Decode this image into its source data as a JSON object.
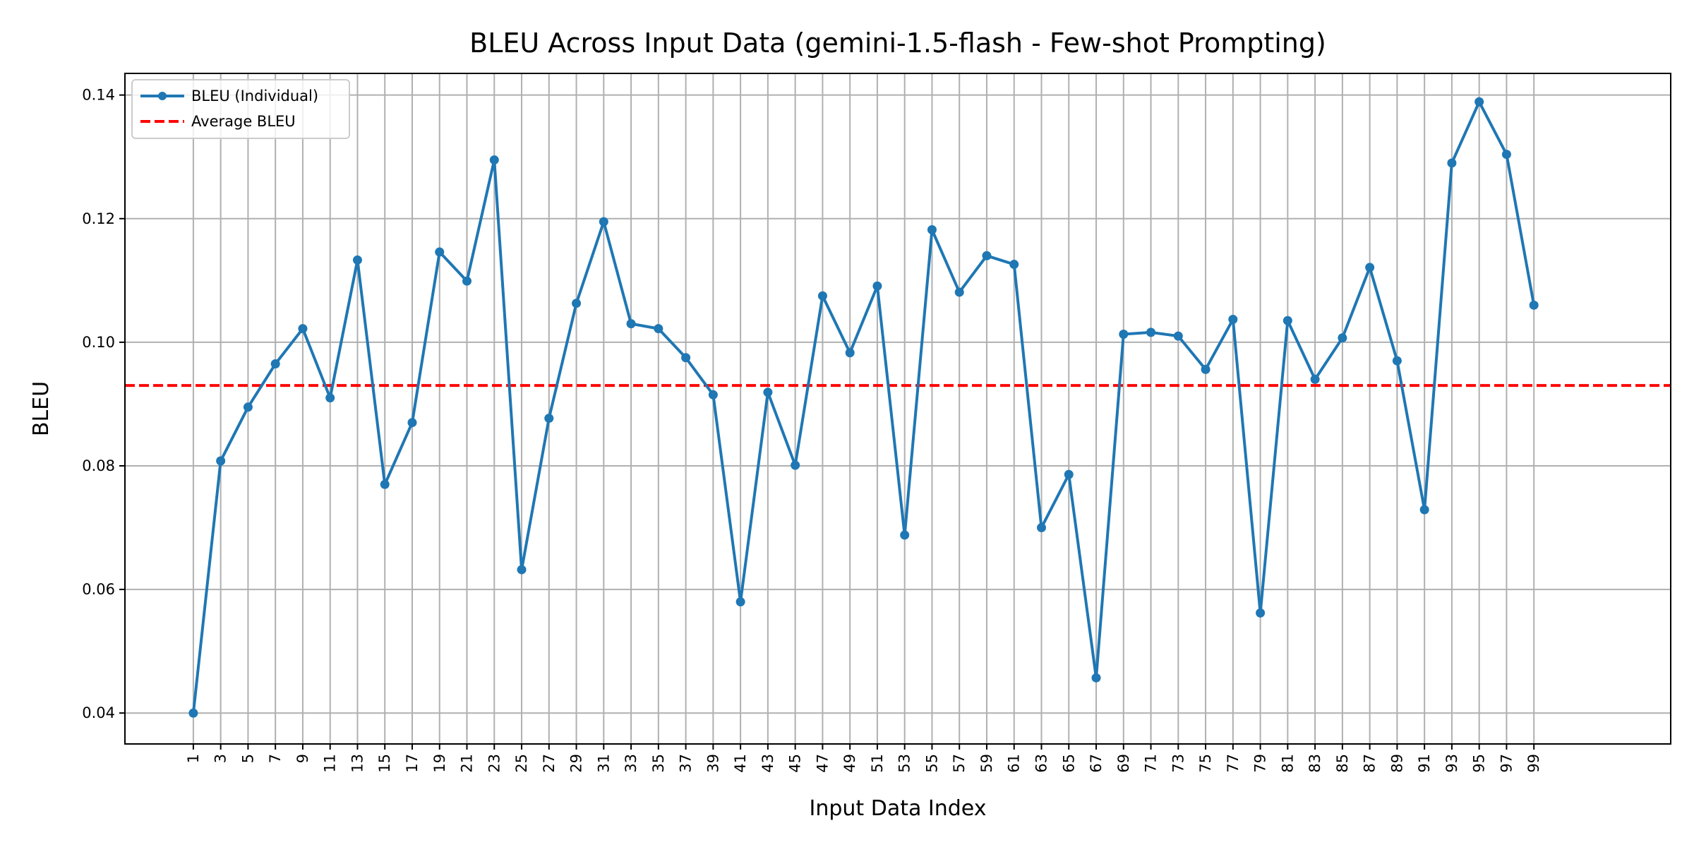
{
  "chart_data": {
    "type": "line",
    "title": "BLEU Across Input Data (gemini-1.5-flash - Few-shot Prompting)",
    "xlabel": "Input Data Index",
    "ylabel": "BLEU",
    "x": [
      1,
      3,
      5,
      7,
      9,
      11,
      13,
      15,
      17,
      19,
      21,
      23,
      25,
      27,
      29,
      31,
      33,
      35,
      37,
      39,
      41,
      43,
      45,
      47,
      49,
      51,
      53,
      55,
      57,
      59,
      61,
      63,
      65,
      67,
      69,
      71,
      73,
      75,
      77,
      79,
      81,
      83,
      85,
      87,
      89,
      91,
      93,
      95,
      97,
      99
    ],
    "xlim": [
      -4,
      109
    ],
    "ylim": [
      0.035,
      0.1435
    ],
    "yticks": [
      0.04,
      0.06,
      0.08,
      0.1,
      0.12,
      0.14
    ],
    "ytick_labels": [
      "0.04",
      "0.06",
      "0.08",
      "0.10",
      "0.12",
      "0.14"
    ],
    "grid": true,
    "legend_position": "upper-left",
    "series": [
      {
        "name": "BLEU (Individual)",
        "color": "#1f77b4",
        "style": "line-with-markers",
        "values": [
          0.04,
          0.0808,
          0.0895,
          0.0965,
          0.1022,
          0.091,
          0.1133,
          0.077,
          0.087,
          0.1146,
          0.1099,
          0.1295,
          0.0632,
          0.0877,
          0.1063,
          0.1195,
          0.103,
          0.1022,
          0.0975,
          0.0915,
          0.058,
          0.0919,
          0.0801,
          0.1075,
          0.0983,
          0.1091,
          0.0688,
          0.1182,
          0.1081,
          0.114,
          0.1126,
          0.07,
          0.0786,
          0.0457,
          0.1013,
          0.1016,
          0.101,
          0.0956,
          0.1037,
          0.0562,
          0.1035,
          0.094,
          0.1007,
          0.1121,
          0.097,
          0.0729,
          0.129,
          0.1389,
          0.1304,
          0.106
        ]
      },
      {
        "name": "Average BLEU",
        "color": "#ff0000",
        "style": "dashed-horizontal",
        "value": 0.093
      }
    ]
  }
}
